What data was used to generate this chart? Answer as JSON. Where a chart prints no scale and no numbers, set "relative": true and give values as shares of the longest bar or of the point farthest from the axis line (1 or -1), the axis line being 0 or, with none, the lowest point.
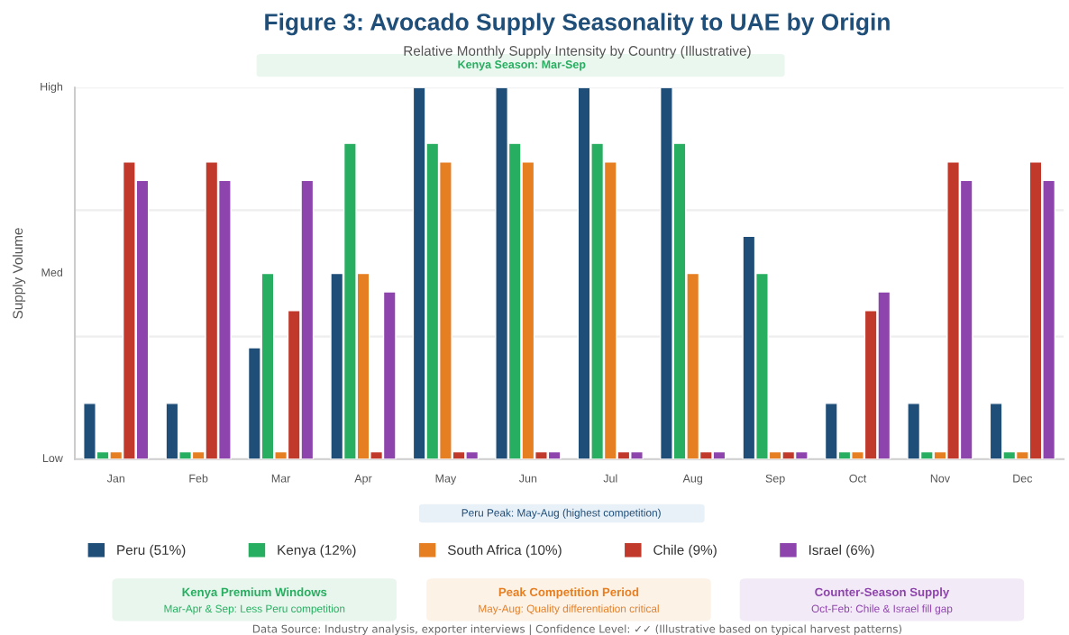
{
  "chart_data": {
    "type": "bar",
    "title": "Figure 3: Avocado Supply Seasonality to UAE by Origin",
    "subtitle": "Relative Monthly Supply Intensity by Country (Illustrative)",
    "ylabel": "Supply Volume",
    "categories": [
      "Jan",
      "Feb",
      "Mar",
      "Apr",
      "May",
      "Jun",
      "Jul",
      "Aug",
      "Sep",
      "Oct",
      "Nov",
      "Dec"
    ],
    "series": [
      {
        "name": "Peru (51%)",
        "color": "#1f4e79",
        "values": [
          0.15,
          0.15,
          0.3,
          0.5,
          1,
          1,
          1,
          1,
          0.6,
          0.15,
          0.15,
          0.15
        ]
      },
      {
        "name": "Kenya (12%)",
        "color": "#27ae60",
        "values": [
          0.02,
          0.02,
          0.5,
          0.85,
          0.85,
          0.85,
          0.85,
          0.85,
          0.5,
          0.02,
          0.02,
          0.02
        ]
      },
      {
        "name": "South Africa (10%)",
        "color": "#e67e22",
        "values": [
          0.02,
          0.02,
          0.02,
          0.5,
          0.8,
          0.8,
          0.8,
          0.5,
          0.02,
          0.02,
          0.02,
          0.02
        ]
      },
      {
        "name": "Chile (9%)",
        "color": "#c0392b",
        "values": [
          0.8,
          0.8,
          0.4,
          0.02,
          0.02,
          0.02,
          0.02,
          0.02,
          0.02,
          0.4,
          0.8,
          0.8
        ]
      },
      {
        "name": "Israel (6%)",
        "color": "#8e44ad",
        "values": [
          0.75,
          0.75,
          0.75,
          0.45,
          0.02,
          0.02,
          0.02,
          0.02,
          0.02,
          0.45,
          0.75,
          0.75
        ]
      }
    ],
    "relative": true,
    "ref_lines": [
      {
        "axis": "y",
        "value": 0.33,
        "color": "#eeeeee"
      },
      {
        "axis": "y",
        "value": 0.67,
        "color": "#eeeeee"
      },
      {
        "axis": "y",
        "value": 1,
        "color": "#eeeeee"
      }
    ],
    "legend": "bottom",
    "annotations": [
      "High",
      "Med",
      "Low",
      "Kenya Season: Mar-Sep",
      "Peru Peak: May-Aug (highest competition)",
      "Kenya Premium Windows",
      "Mar-Apr & Sep: Less Peru competition",
      "Peak Competition Period",
      "May-Aug: Quality differentiation critical",
      "Counter-Season Supply",
      "Oct-Feb: Chile & Israel fill gap",
      "Data Source: Industry analysis, exporter interviews | Confidence Level: ✓✓ (Illustrative based on typical harvest patterns)"
    ]
  }
}
